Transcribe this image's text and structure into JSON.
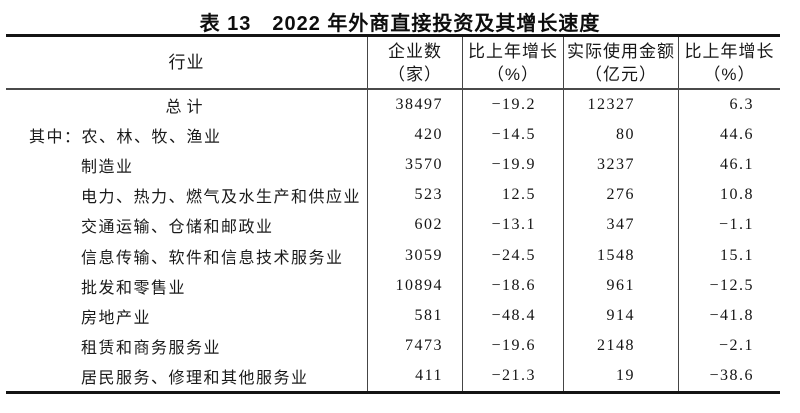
{
  "page": {
    "background": "#ffffff"
  },
  "title": "表 13　2022 年外商直接投资及其增长速度",
  "colors": {
    "text": "#141414",
    "border_heavy": "#141414",
    "border_light": "#4a4a4a",
    "background": "#ffffff"
  },
  "table": {
    "headers": [
      {
        "line1": "行业",
        "line2": ""
      },
      {
        "line1": "企业数",
        "line2": "（家）"
      },
      {
        "line1": "比上年增长",
        "line2": "（%）"
      },
      {
        "line1": "实际使用金额",
        "line2": "（亿元）"
      },
      {
        "line1": "比上年增长",
        "line2": "（%）"
      }
    ],
    "rows": [
      {
        "prefix": "",
        "label": "总计",
        "cells": [
          "38497",
          "−19.2",
          "12327",
          "6.3"
        ]
      },
      {
        "prefix": "其中：",
        "label": "农、林、牧、渔业",
        "cells": [
          "420",
          "−14.5",
          "80",
          "44.6"
        ]
      },
      {
        "prefix": "",
        "label": "制造业",
        "cells": [
          "3570",
          "−19.9",
          "3237",
          "46.1"
        ]
      },
      {
        "prefix": "",
        "label": "电力、热力、燃气及水生产和供应业",
        "cells": [
          "523",
          "12.5",
          "276",
          "10.8"
        ]
      },
      {
        "prefix": "",
        "label": "交通运输、仓储和邮政业",
        "cells": [
          "602",
          "−13.1",
          "347",
          "−1.1"
        ]
      },
      {
        "prefix": "",
        "label": "信息传输、软件和信息技术服务业",
        "cells": [
          "3059",
          "−24.5",
          "1548",
          "15.1"
        ]
      },
      {
        "prefix": "",
        "label": "批发和零售业",
        "cells": [
          "10894",
          "−18.6",
          "961",
          "−12.5"
        ]
      },
      {
        "prefix": "",
        "label": "房地产业",
        "cells": [
          "581",
          "−48.4",
          "914",
          "−41.8"
        ]
      },
      {
        "prefix": "",
        "label": "租赁和商务服务业",
        "cells": [
          "7473",
          "−19.6",
          "2148",
          "−2.1"
        ]
      },
      {
        "prefix": "",
        "label": "居民服务、修理和其他服务业",
        "cells": [
          "411",
          "−21.3",
          "19",
          "−38.6"
        ]
      }
    ]
  }
}
